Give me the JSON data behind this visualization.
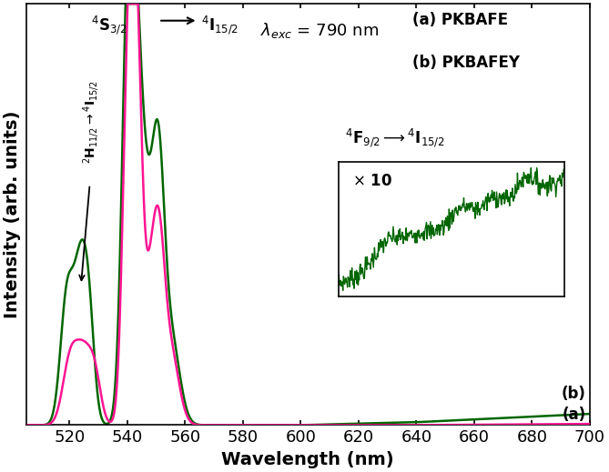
{
  "xlabel": "Wavelength (nm)",
  "ylabel": "Intensity (arb. units)",
  "xlim": [
    505,
    700
  ],
  "ylim": [
    0,
    1.05
  ],
  "xticks": [
    520,
    540,
    560,
    580,
    600,
    620,
    640,
    660,
    680,
    700
  ],
  "color_a": "#FF1493",
  "color_b": "#006600",
  "label_a": "(a) PKBAFE",
  "label_b": "(b) PKBAFEY",
  "background": "#ffffff"
}
